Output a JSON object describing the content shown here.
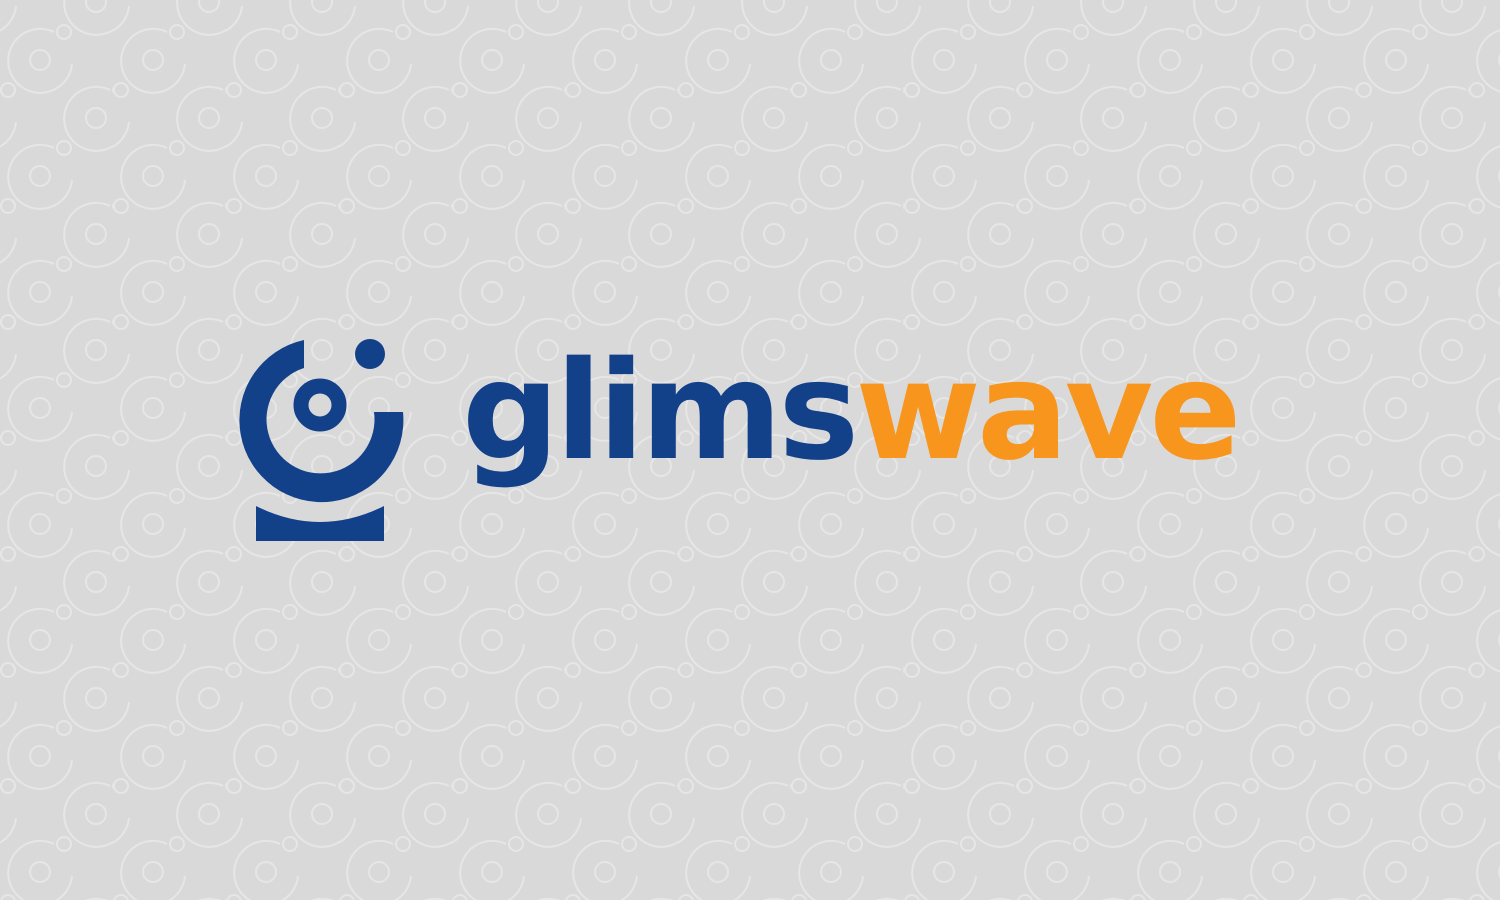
{
  "background": {
    "color": "#d9d9d9",
    "pattern_color": "#e3e3e3",
    "pattern_icon": "logo-mark-outline-icon"
  },
  "logo": {
    "mark_icon": "glimswave-mark-icon",
    "mark_color": "#12418a",
    "wordmark_part1": "glims",
    "wordmark_part2": "wave",
    "part1_color": "#12418a",
    "part2_color": "#f7951d"
  }
}
